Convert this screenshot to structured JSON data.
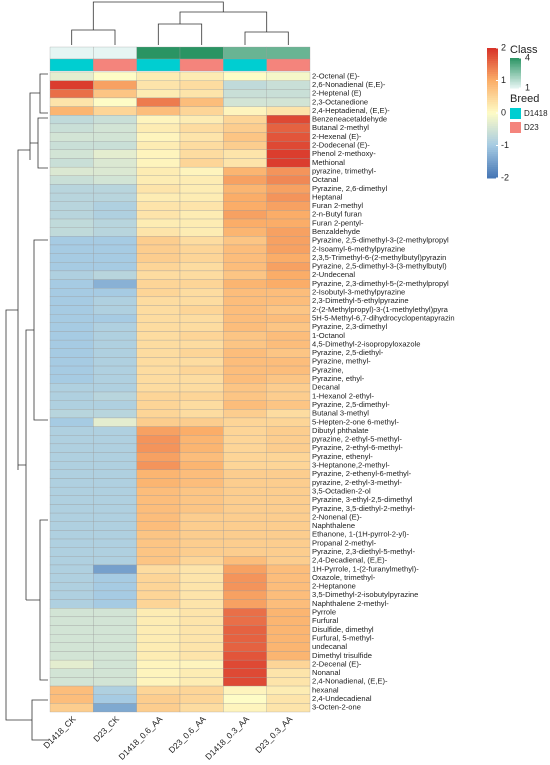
{
  "chart_data": {
    "type": "heatmap",
    "columns": [
      "D1418_CK",
      "D23_CK",
      "D1418_0.6_AA",
      "D23_0.6_AA",
      "D1418_0.3_AA",
      "D23_0.3_AA"
    ],
    "rows": [
      "2-Octenal (E)-",
      "2,6-Nonadienal (E,E)-",
      "2-Heptenal (E)",
      "2,3-Octanedione",
      "2,4-Heptadienal, (E,E)-",
      "Benzeneacetaldehyde",
      "Butanal 2-methyl",
      "2-Hexenal (E)-",
      "2-Dodecenal (E)-",
      "Phenol 2-methoxy-",
      "Methional",
      "pyrazine, trimethyl-",
      "Octanal",
      "Pyrazine, 2,6-dimethyl",
      "Heptanal",
      "Furan 2-methyl",
      "2-n-Butyl furan",
      "Furan 2-pentyl-",
      "Benzaldehyde",
      "Pyrazine, 2,5-dimethyl-3-(2-methylpropyl",
      "2-Isoamyl-6-methylpyrazine",
      "2,3,5-Trimethyl-6-(2-methylbutyl)pyrazin",
      "Pyrazine, 2,5-dimethyl-3-(3-methylbutyl)",
      "2-Undecenal",
      "Pyrazine, 2,3-dimethyl-5-(2-methylpropyl",
      "2-Isobutyl-3-methylpyrazine",
      "2,3-Dimethyl-5-ethylpyrazine",
      "2-(2-Methylpropyl)-3-(1-methylethyl)pyra",
      "5H-5-Methyl-6,7-dihydrocyclopentapyrazin",
      "Pyrazine, 2,3-dimethyl",
      "1-Octanol",
      "4,5-Dimethyl-2-isopropyloxazole",
      "Pyrazine, 2,5-diethyl-",
      "Pyrazine, methyl-",
      "Pyrazine,",
      "Pyrazine, ethyl-",
      "Decanal",
      "1-Hexanol 2-ethyl-",
      "Pyrazine, 2,5-dimethyl-",
      "Butanal 3-methyl",
      "5-Hepten-2-one 6-methyl-",
      "Dibutyl phthalate",
      "pyrazine, 2-ethyl-5-methyl-",
      "Pyrazine, 2-ethyl-6-methyl-",
      "Pyrazine, ethenyl-",
      "3-Heptanone,2-methyl-",
      "Pyrazine, 2-ethenyl-6-methyl-",
      "pyrazine, 2-ethyl-3-methyl-",
      "3,5-Octadien-2-ol",
      "Pyrazine, 3-ethyl-2,5-dimethyl",
      "Pyrazine, 3,5-diethyl-2-methyl-",
      "2-Nonenal (E)-",
      "Naphthalene",
      "Ethanone, 1-(1H-pyrrol-2-yl)-",
      "Propanal 2-methyl-",
      "Pyrazine, 2,3-diethyl-5-methyl-",
      "2,4-Decadienal, (E,E)-",
      "1H-Pyrrole, 1-(2-furanylmethyl)-",
      "Oxazole, trimethyl-",
      "2-Heptanone",
      "3,5-Dimethyl-2-isobutylpyrazine",
      "Naphthalene 2-methyl-",
      "Pyrrole",
      "Furfural",
      "Disulfide, dimethyl",
      "Furfural, 5-methyl-",
      "undecanal",
      "Dimethyl trisulfide",
      "2-Decenal (E)-",
      "Nonanal",
      "2,4-Nonadienal, (E,E)-",
      "hexanal",
      "2,4-Undecadienal",
      "3-Octen-2-one"
    ],
    "values": [
      [
        -0.3,
        0,
        0.2,
        0.2,
        0,
        -0.1
      ],
      [
        1.9,
        1.1,
        0.3,
        0.4,
        -0.7,
        -0.6
      ],
      [
        1.5,
        0.7,
        0.2,
        0.3,
        -0.6,
        -0.6
      ],
      [
        0.3,
        0,
        1.4,
        0.8,
        -0.5,
        -0.5
      ],
      [
        0.9,
        0.5,
        0.8,
        0.5,
        0.1,
        0.3
      ],
      [
        -0.7,
        -0.6,
        0.1,
        0.2,
        0.5,
        1.8
      ],
      [
        -0.6,
        -0.5,
        0.2,
        0.4,
        0.6,
        1.6
      ],
      [
        -0.5,
        -0.5,
        0.1,
        0.3,
        0.7,
        1.7
      ],
      [
        -0.6,
        -0.6,
        0.2,
        0.4,
        0.6,
        1.8
      ],
      [
        -0.5,
        -0.3,
        0.1,
        0.4,
        0.3,
        1.9
      ],
      [
        -0.6,
        -0.4,
        0.1,
        0.5,
        0.3,
        1.9
      ],
      [
        -0.4,
        -0.4,
        0.2,
        0.1,
        0.9,
        1.2
      ],
      [
        -0.6,
        -0.5,
        0.2,
        0.2,
        1.1,
        1.3
      ],
      [
        -0.8,
        -0.8,
        0.3,
        0.2,
        0.9,
        1.1
      ],
      [
        -0.8,
        -0.8,
        0.2,
        0.2,
        1,
        1.2
      ],
      [
        -0.8,
        -0.9,
        0.3,
        0.3,
        1,
        1.1
      ],
      [
        -0.8,
        -0.9,
        0.3,
        0.2,
        1.1,
        1
      ],
      [
        -0.7,
        -0.8,
        0.2,
        0.2,
        1,
        1
      ],
      [
        -0.7,
        -0.8,
        0.3,
        0.2,
        0.9,
        1.1
      ],
      [
        -1,
        -1,
        0.6,
        0.4,
        0.7,
        1.1
      ],
      [
        -1,
        -1,
        0.6,
        0.5,
        0.8,
        1.1
      ],
      [
        -1,
        -1,
        0.6,
        0.5,
        0.8,
        1
      ],
      [
        -1,
        -1,
        0.5,
        0.4,
        0.8,
        1.1
      ],
      [
        -0.9,
        -0.8,
        0.4,
        0.4,
        0.7,
        1
      ],
      [
        -1,
        -1.3,
        0.5,
        0.5,
        0.9,
        1
      ],
      [
        -1,
        -1,
        0.5,
        0.4,
        0.8,
        0.8
      ],
      [
        -1,
        -0.9,
        0.4,
        0.4,
        0.8,
        0.8
      ],
      [
        -1,
        -0.9,
        0.4,
        0.5,
        0.8,
        0.7
      ],
      [
        -1,
        -1,
        0.4,
        0.4,
        0.8,
        0.8
      ],
      [
        -1,
        -0.9,
        0.4,
        0.4,
        0.8,
        0.7
      ],
      [
        -1,
        -0.9,
        0.4,
        0.5,
        0.7,
        0.8
      ],
      [
        -1,
        -0.9,
        0.4,
        0.4,
        0.7,
        0.8
      ],
      [
        -1,
        -0.9,
        0.4,
        0.5,
        0.8,
        0.7
      ],
      [
        -1,
        -0.9,
        0.4,
        0.4,
        0.8,
        0.8
      ],
      [
        -1,
        -0.9,
        0.4,
        0.5,
        0.8,
        0.8
      ],
      [
        -1,
        -0.9,
        0.4,
        0.4,
        0.8,
        0.7
      ],
      [
        -0.9,
        -0.9,
        0.4,
        0.4,
        0.7,
        0.6
      ],
      [
        -0.9,
        -0.8,
        0.5,
        0.5,
        0.7,
        0.6
      ],
      [
        -0.9,
        -0.9,
        0.5,
        0.4,
        0.8,
        0.7
      ],
      [
        -0.8,
        -0.8,
        0.5,
        0.4,
        0.6,
        0.4
      ],
      [
        -1,
        -0.3,
        0.6,
        0.6,
        0.5,
        0.5
      ],
      [
        -0.9,
        -0.9,
        1.1,
        1,
        0.5,
        0.6
      ],
      [
        -0.9,
        -0.9,
        1.2,
        0.9,
        0.5,
        0.6
      ],
      [
        -0.9,
        -0.9,
        1.2,
        0.9,
        0.5,
        0.6
      ],
      [
        -0.9,
        -0.9,
        1.1,
        0.8,
        0.5,
        0.5
      ],
      [
        -0.9,
        -0.9,
        1.2,
        0.9,
        0.5,
        0.5
      ],
      [
        -0.9,
        -0.9,
        0.9,
        0.8,
        0.6,
        0.6
      ],
      [
        -0.9,
        -0.9,
        0.9,
        0.8,
        0.6,
        0.6
      ],
      [
        -0.9,
        -0.9,
        0.8,
        0.7,
        0.6,
        0.6
      ],
      [
        -0.9,
        -0.9,
        0.8,
        0.7,
        0.6,
        0.6
      ],
      [
        -0.9,
        -0.9,
        0.8,
        0.7,
        0.6,
        0.6
      ],
      [
        -0.9,
        -0.9,
        0.8,
        0.6,
        0.6,
        0.6
      ],
      [
        -0.9,
        -0.9,
        0.8,
        0.6,
        0.6,
        0.6
      ],
      [
        -0.9,
        -0.9,
        0.7,
        0.6,
        0.6,
        0.6
      ],
      [
        -0.9,
        -0.9,
        0.7,
        0.6,
        0.6,
        0.6
      ],
      [
        -0.9,
        -0.9,
        0.7,
        0.6,
        0.6,
        0.6
      ],
      [
        -0.9,
        -0.9,
        0.7,
        0.5,
        0.8,
        0.6
      ],
      [
        -0.9,
        -1.5,
        0.4,
        0.3,
        1.1,
        0.8
      ],
      [
        -0.9,
        -1,
        0.5,
        0.3,
        1.2,
        0.8
      ],
      [
        -0.9,
        -1,
        0.5,
        0.3,
        1.2,
        0.8
      ],
      [
        -0.9,
        -1,
        0.5,
        0.3,
        1.1,
        0.8
      ],
      [
        -0.9,
        -1,
        0.5,
        0.3,
        1.1,
        0.8
      ],
      [
        -0.5,
        -0.5,
        0.2,
        0.3,
        1.5,
        0.9
      ],
      [
        -0.5,
        -0.5,
        0.2,
        0.3,
        1.5,
        0.9
      ],
      [
        -0.5,
        -0.5,
        0.2,
        0.3,
        1.6,
        0.9
      ],
      [
        -0.5,
        -0.5,
        0.2,
        0.3,
        1.6,
        0.9
      ],
      [
        -0.5,
        -0.5,
        0.2,
        0.3,
        1.6,
        0.9
      ],
      [
        -0.5,
        -0.5,
        0.2,
        0.3,
        1.7,
        0.9
      ],
      [
        -0.3,
        -0.5,
        0.1,
        0.1,
        1.8,
        0.5
      ],
      [
        -0.5,
        -0.5,
        0.1,
        0.2,
        1.8,
        0.3
      ],
      [
        -0.5,
        -0.5,
        0.1,
        0.2,
        1.8,
        0.3
      ],
      [
        0.8,
        -0.9,
        0.5,
        0.5,
        0.1,
        0.2
      ],
      [
        0.8,
        -1,
        0.6,
        0.5,
        0,
        0.3
      ],
      [
        0.6,
        -1.4,
        0.6,
        0.4,
        0.1,
        0.3
      ]
    ],
    "zlim": [
      -2,
      2
    ],
    "zticks": [
      2,
      1,
      0,
      -1,
      -2
    ],
    "colors": [
      "#4575b4",
      "#a6cbe3",
      "#fefcc6",
      "#fbad68",
      "#d73027"
    ],
    "annotations": {
      "class": {
        "title": "Class",
        "values": [
          1,
          1,
          4,
          4,
          3,
          3
        ],
        "lim": [
          1,
          4
        ],
        "ticks": [
          4,
          1
        ],
        "colors": [
          "#e6f5f3",
          "#2a9463"
        ]
      },
      "breed": {
        "title": "Breed",
        "values": [
          "D1418",
          "D23",
          "D1418",
          "D23",
          "D1418",
          "D23"
        ],
        "categories": [
          "D1418",
          "D23"
        ],
        "colors": [
          "#00ced1",
          "#f4847c"
        ]
      }
    }
  }
}
